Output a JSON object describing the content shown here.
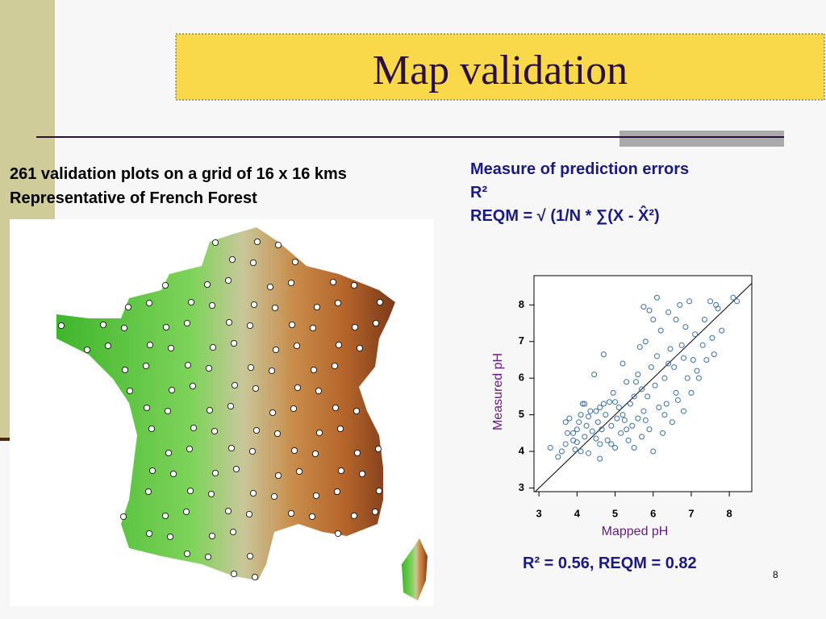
{
  "title": "Map validation",
  "left_text": [
    "261 validation plots on a grid of 16 x 16 kms",
    "Representative of French Forest"
  ],
  "right_text": [
    "Measure of prediction errors",
    "R²",
    "REQM = √ (1/N * ∑(X - X̂²)"
  ],
  "result": "R² = 0.56, REQM = 0.82",
  "page_number": "8",
  "chart_data": {
    "type": "scatter",
    "color": "#3a6fa8",
    "x_label": "Mapped pH",
    "y_label": "Measured pH",
    "xlim": [
      2.87,
      8.59
    ],
    "ylim": [
      2.9,
      8.8
    ],
    "xticks": [
      3,
      4,
      5,
      6,
      7,
      8
    ],
    "yticks": [
      3,
      4,
      5,
      6,
      7,
      8
    ],
    "x": [
      3.3,
      3.5,
      3.6,
      3.7,
      3.75,
      3.8,
      3.9,
      3.95,
      4.0,
      4.05,
      4.1,
      4.1,
      4.15,
      4.2,
      4.25,
      4.3,
      4.35,
      4.4,
      4.45,
      4.5,
      4.55,
      4.6,
      4.6,
      4.65,
      4.7,
      4.75,
      4.8,
      4.85,
      4.9,
      4.95,
      5.0,
      5.05,
      5.1,
      5.15,
      5.2,
      5.25,
      5.3,
      5.35,
      5.4,
      5.45,
      5.5,
      5.55,
      5.6,
      5.65,
      5.7,
      5.75,
      5.8,
      5.85,
      5.9,
      5.95,
      6.0,
      6.05,
      6.1,
      6.15,
      6.2,
      6.25,
      6.3,
      6.35,
      6.4,
      6.45,
      6.5,
      6.55,
      6.6,
      6.65,
      6.7,
      6.75,
      6.8,
      6.85,
      6.9,
      6.95,
      7.0,
      7.05,
      7.1,
      7.15,
      7.3,
      7.4,
      7.5,
      7.55,
      7.6,
      7.65,
      7.7,
      7.8,
      8.1,
      8.2,
      6.1,
      5.9,
      5.75,
      6.0,
      5.5,
      5.2,
      4.9,
      4.3,
      3.9,
      4.7,
      5.0,
      5.8,
      6.3,
      6.6,
      7.2,
      4.5,
      4.0,
      5.6,
      6.8,
      5.3,
      4.2,
      6.4,
      5.7,
      4.6,
      3.7,
      7.35
    ],
    "values": [
      4.1,
      3.85,
      4.0,
      4.2,
      4.5,
      4.9,
      4.3,
      4.05,
      4.6,
      4.8,
      5.0,
      4.0,
      5.3,
      4.4,
      4.7,
      3.95,
      5.1,
      4.55,
      6.1,
      4.35,
      4.8,
      3.8,
      5.2,
      4.6,
      6.65,
      5.0,
      4.3,
      5.35,
      4.7,
      5.6,
      4.1,
      4.9,
      5.2,
      4.5,
      6.4,
      4.85,
      5.9,
      4.3,
      5.3,
      4.7,
      4.1,
      5.9,
      4.9,
      6.85,
      4.4,
      5.1,
      7.0,
      5.5,
      4.6,
      6.3,
      4.0,
      5.8,
      6.6,
      5.2,
      7.3,
      4.5,
      6.0,
      5.3,
      7.8,
      6.8,
      4.8,
      6.3,
      7.6,
      5.4,
      8.0,
      6.9,
      5.1,
      7.4,
      6.0,
      8.1,
      5.6,
      6.5,
      7.2,
      6.2,
      6.9,
      6.5,
      8.1,
      7.1,
      6.65,
      8.0,
      7.9,
      7.3,
      8.2,
      8.1,
      8.2,
      7.85,
      7.95,
      7.6,
      5.5,
      5.0,
      4.2,
      4.95,
      4.5,
      5.3,
      5.35,
      4.85,
      5.0,
      5.6,
      6.0,
      5.1,
      4.25,
      6.1,
      6.55,
      4.6,
      5.3,
      6.4,
      5.7,
      4.2,
      4.8,
      7.6
    ]
  }
}
